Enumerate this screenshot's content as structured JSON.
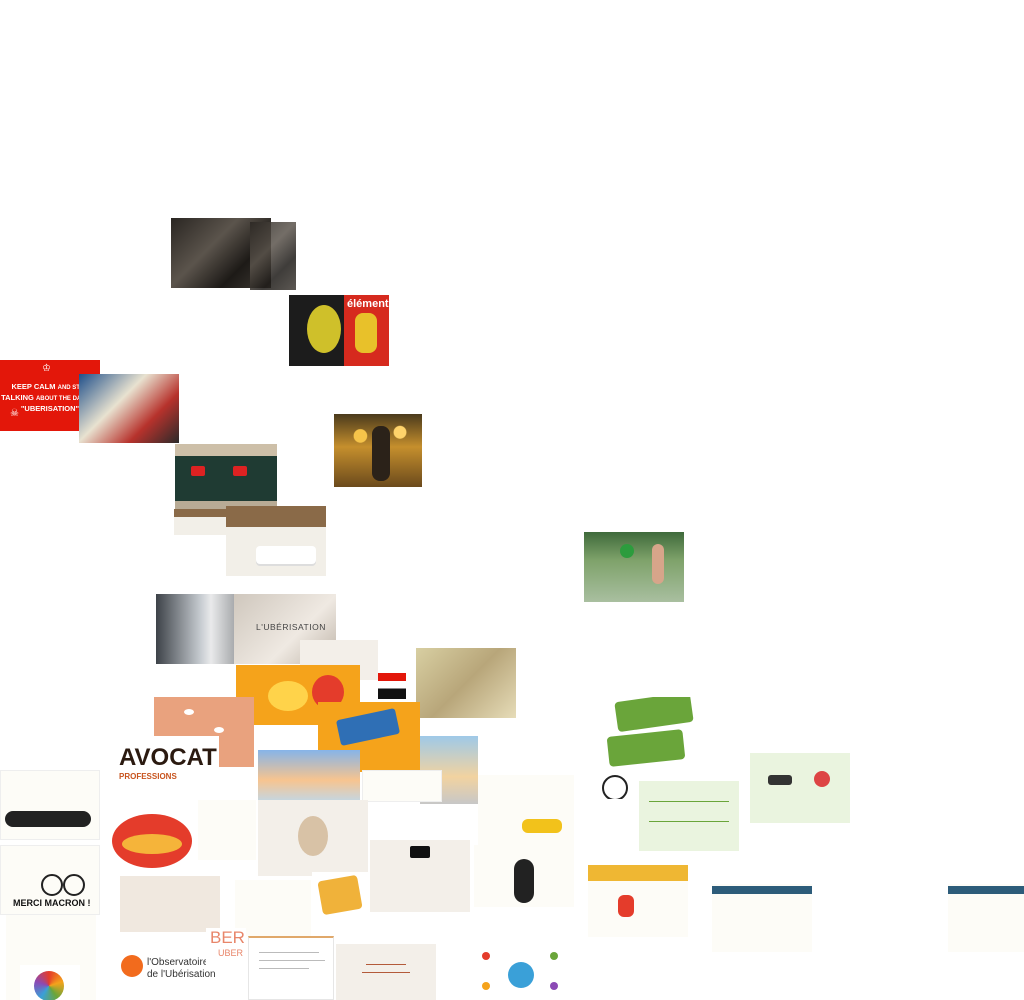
{
  "tiles": {
    "keep_calm": {
      "line1": "KEEP CALM",
      "line1b": "AND STOP",
      "line2": "TALKING",
      "line2b": "ABOUT THE DAMNED",
      "line3": "\"UBERISATION\"",
      "icon": "skull-crossbones-icon"
    },
    "magazine": {
      "masthead": "éléments"
    },
    "uberisation_card": {
      "title": "L'UBÉRISATION"
    },
    "avocat": {
      "big": "AVOCAT",
      "small": "PROFESSIONS"
    },
    "merci": {
      "caption": "MERCI MACRON !"
    },
    "observatoire": {
      "line1": "l'Observatoire",
      "line2": "de l'Ubérisation"
    },
    "uber_logo": {
      "fragment1": "BER",
      "fragment2": "UBER"
    }
  },
  "colors": {
    "keep_calm_red": "#e3170a",
    "orange": "#f5a31b",
    "salmon": "#e9a27e",
    "infographic_green": "#eaf4df"
  }
}
